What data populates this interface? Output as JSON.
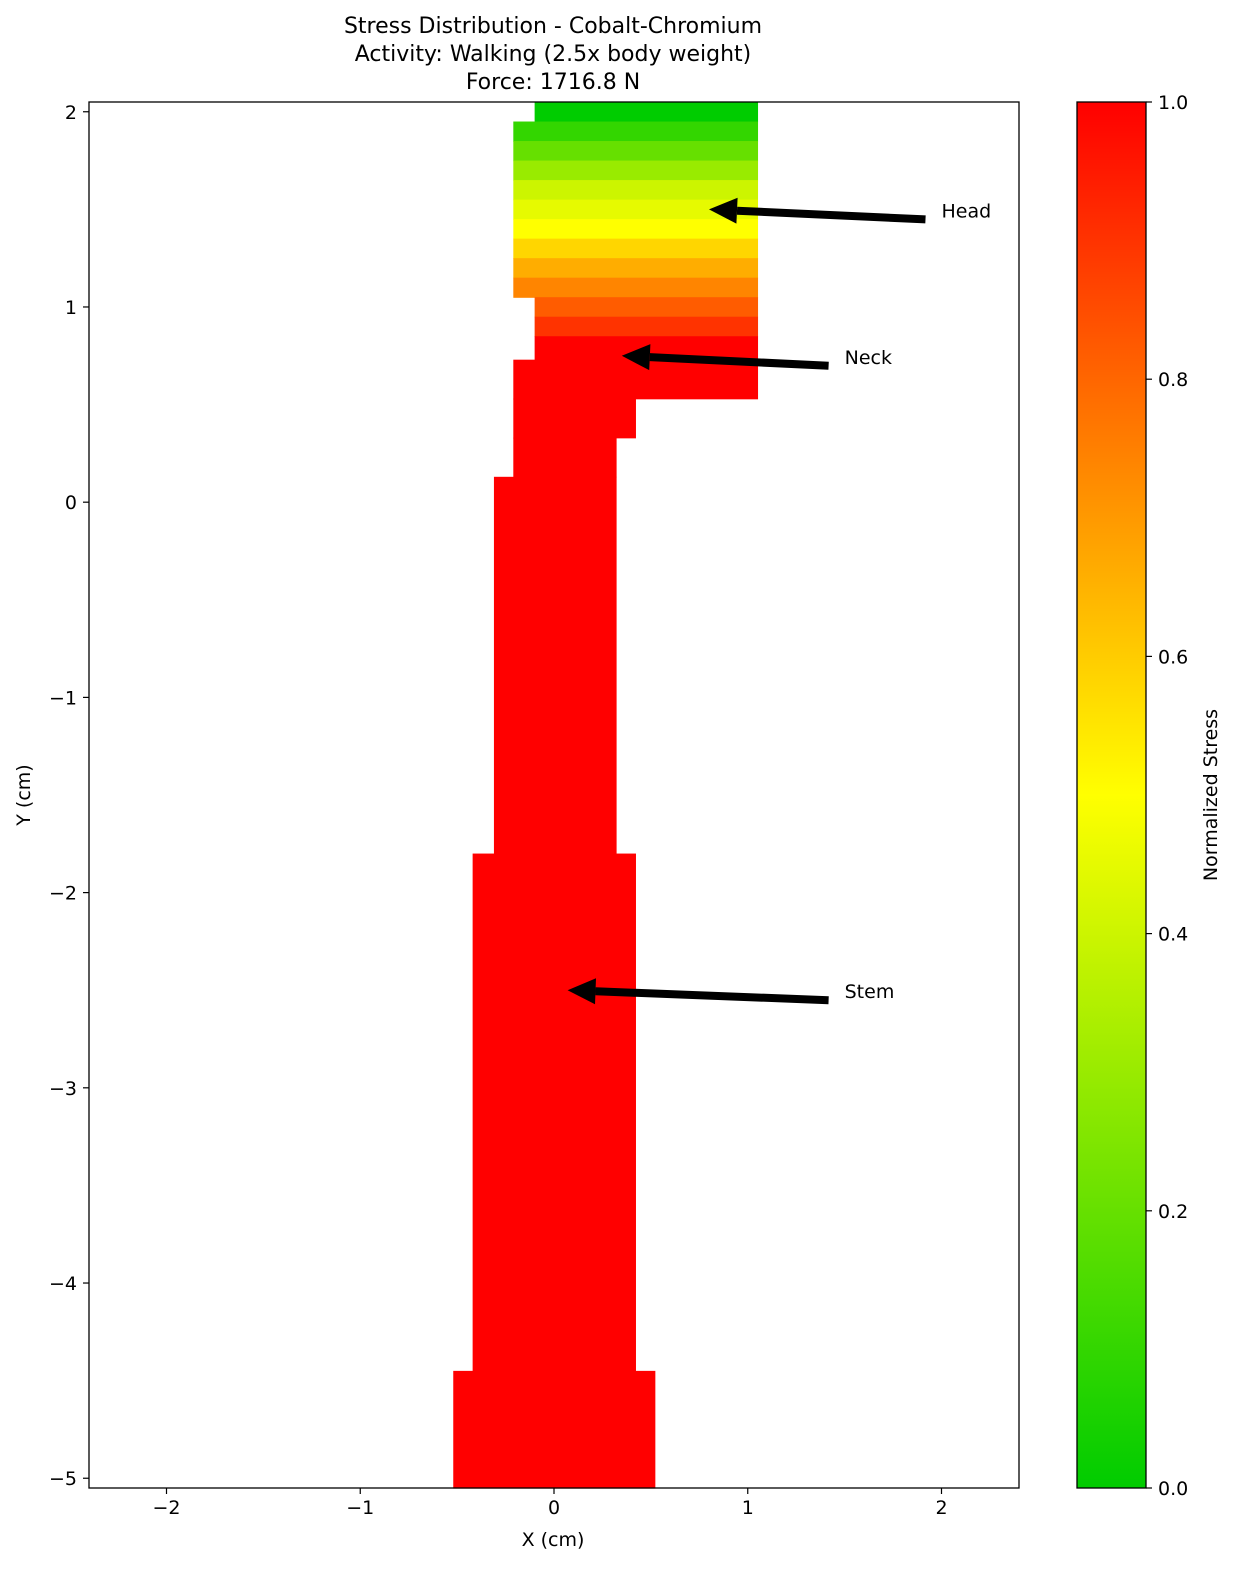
{
  "chart_data": {
    "type": "heatmap",
    "title": [
      "Stress Distribution - Cobalt-Chromium",
      "Activity: Walking (2.5x body weight)",
      "Force: 1716.8 N"
    ],
    "xlabel": "X (cm)",
    "ylabel": "Y (cm)",
    "xlim": [
      -2.4,
      2.4
    ],
    "ylim": [
      -5.05,
      2.05
    ],
    "xticks": [
      -2,
      -1,
      0,
      1,
      2
    ],
    "yticks": [
      2,
      1,
      0,
      -1,
      -2,
      -3,
      -4,
      -5
    ],
    "grid": false,
    "colormap": {
      "stops": [
        "#00cc00",
        "#ffff00",
        "#ff0000"
      ],
      "range": [
        0,
        1
      ]
    },
    "colorbar": {
      "label": "Normalized Stress",
      "ticks": [
        0.0,
        0.2,
        0.4,
        0.6,
        0.8,
        1.0
      ]
    },
    "cells": [
      {
        "x": [
          -0.1,
          1.05
        ],
        "y": [
          1.95,
          2.05
        ],
        "value": 0.0
      },
      {
        "x": [
          -0.21,
          1.05
        ],
        "y": [
          1.85,
          1.95
        ],
        "value": 0.1
      },
      {
        "x": [
          -0.21,
          1.05
        ],
        "y": [
          1.75,
          1.85
        ],
        "value": 0.2
      },
      {
        "x": [
          -0.21,
          1.05
        ],
        "y": [
          1.65,
          1.75
        ],
        "value": 0.3
      },
      {
        "x": [
          -0.21,
          1.05
        ],
        "y": [
          1.55,
          1.65
        ],
        "value": 0.4
      },
      {
        "x": [
          -0.21,
          1.05
        ],
        "y": [
          1.45,
          1.55
        ],
        "value": 0.45
      },
      {
        "x": [
          -0.21,
          1.05
        ],
        "y": [
          1.35,
          1.45
        ],
        "value": 0.5
      },
      {
        "x": [
          -0.21,
          1.05
        ],
        "y": [
          1.25,
          1.35
        ],
        "value": 0.58
      },
      {
        "x": [
          -0.21,
          1.05
        ],
        "y": [
          1.15,
          1.25
        ],
        "value": 0.66
      },
      {
        "x": [
          -0.21,
          1.05
        ],
        "y": [
          1.05,
          1.15
        ],
        "value": 0.74
      },
      {
        "x": [
          -0.1,
          1.05
        ],
        "y": [
          0.95,
          1.05
        ],
        "value": 0.82
      },
      {
        "x": [
          -0.1,
          1.05
        ],
        "y": [
          0.85,
          0.95
        ],
        "value": 0.9
      },
      {
        "x": [
          -0.1,
          1.05
        ],
        "y": [
          0.53,
          0.85
        ],
        "value": 1.0
      },
      {
        "x": [
          -0.21,
          -0.1
        ],
        "y": [
          0.53,
          0.73
        ],
        "value": 1.0
      },
      {
        "x": [
          -0.21,
          0.42
        ],
        "y": [
          0.33,
          0.53
        ],
        "value": 1.0
      },
      {
        "x": [
          -0.21,
          0.32
        ],
        "y": [
          0.13,
          0.33
        ],
        "value": 1.0
      },
      {
        "x": [
          -0.31,
          0.32
        ],
        "y": [
          -1.8,
          0.13
        ],
        "value": 1.0
      },
      {
        "x": [
          -0.42,
          0.42
        ],
        "y": [
          -4.45,
          -1.8
        ],
        "value": 1.0
      },
      {
        "x": [
          -0.52,
          0.52
        ],
        "y": [
          -5.05,
          -4.45
        ],
        "value": 1.0
      }
    ],
    "annotations": [
      {
        "text": "Head",
        "xy": [
          0.8,
          1.5
        ],
        "xytext": [
          2.0,
          1.5
        ]
      },
      {
        "text": "Neck",
        "xy": [
          0.35,
          0.75
        ],
        "xytext": [
          1.5,
          0.75
        ]
      },
      {
        "text": "Stem",
        "xy": [
          0.07,
          -2.5
        ],
        "xytext": [
          1.5,
          -2.5
        ]
      }
    ]
  }
}
